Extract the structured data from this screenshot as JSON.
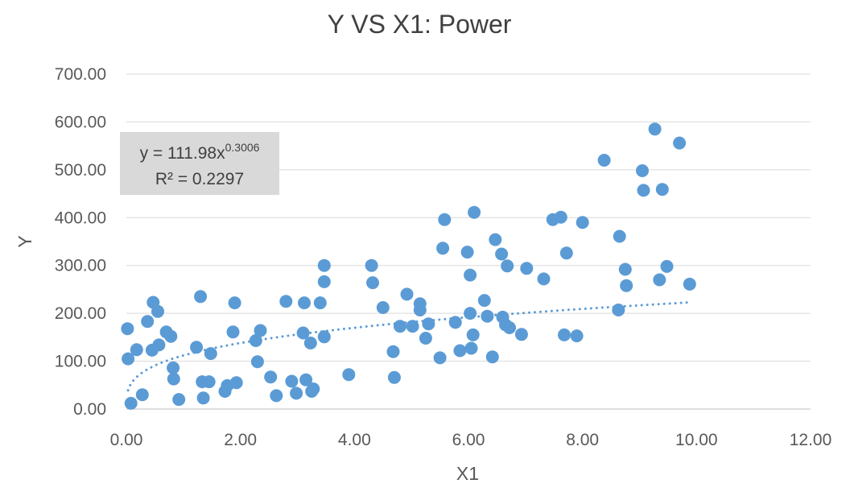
{
  "chart_data": {
    "type": "scatter",
    "title": "Y VS X1: Power",
    "xlabel": "X1",
    "ylabel": "Y",
    "xlim": [
      0,
      12
    ],
    "ylim": [
      0,
      700
    ],
    "xticks": [
      "0.00",
      "2.00",
      "4.00",
      "6.00",
      "8.00",
      "10.00",
      "12.00"
    ],
    "yticks": [
      "0.00",
      "100.00",
      "200.00",
      "300.00",
      "400.00",
      "500.00",
      "600.00",
      "700.00"
    ],
    "grid": "horizontal",
    "marker_color": "#5B9BD5",
    "trendline": {
      "type": "power",
      "a": 111.98,
      "b": 0.3006,
      "equation_prefix": "y = 111.98x",
      "equation_exponent": "0.3006",
      "r2_text": "R² = 0.2297"
    },
    "points": [
      [
        0.02,
        168
      ],
      [
        0.03,
        105
      ],
      [
        0.08,
        12
      ],
      [
        0.18,
        124
      ],
      [
        0.28,
        30
      ],
      [
        0.37,
        183
      ],
      [
        0.45,
        123
      ],
      [
        0.47,
        223
      ],
      [
        0.55,
        204
      ],
      [
        0.57,
        134
      ],
      [
        0.7,
        161
      ],
      [
        0.78,
        152
      ],
      [
        0.82,
        86
      ],
      [
        0.83,
        63
      ],
      [
        0.92,
        20
      ],
      [
        1.23,
        129
      ],
      [
        1.3,
        235
      ],
      [
        1.33,
        57
      ],
      [
        1.35,
        23
      ],
      [
        1.45,
        57
      ],
      [
        1.48,
        116
      ],
      [
        1.73,
        37
      ],
      [
        1.77,
        49
      ],
      [
        1.87,
        161
      ],
      [
        1.9,
        222
      ],
      [
        1.93,
        55
      ],
      [
        2.27,
        143
      ],
      [
        2.3,
        99
      ],
      [
        2.35,
        164
      ],
      [
        2.53,
        67
      ],
      [
        2.63,
        28
      ],
      [
        2.8,
        225
      ],
      [
        2.9,
        58
      ],
      [
        2.98,
        33
      ],
      [
        3.1,
        159
      ],
      [
        3.12,
        222
      ],
      [
        3.15,
        61
      ],
      [
        3.23,
        138
      ],
      [
        3.25,
        37
      ],
      [
        3.28,
        42
      ],
      [
        3.4,
        222
      ],
      [
        3.47,
        151
      ],
      [
        3.47,
        300
      ],
      [
        3.47,
        266
      ],
      [
        3.9,
        72
      ],
      [
        4.3,
        300
      ],
      [
        4.32,
        264
      ],
      [
        4.5,
        212
      ],
      [
        4.68,
        120
      ],
      [
        4.7,
        66
      ],
      [
        4.8,
        173
      ],
      [
        4.92,
        240
      ],
      [
        5.02,
        173
      ],
      [
        5.15,
        207
      ],
      [
        5.15,
        220
      ],
      [
        5.25,
        148
      ],
      [
        5.3,
        178
      ],
      [
        5.5,
        107
      ],
      [
        5.55,
        336
      ],
      [
        5.58,
        396
      ],
      [
        5.77,
        181
      ],
      [
        5.85,
        122
      ],
      [
        5.98,
        328
      ],
      [
        6.03,
        200
      ],
      [
        6.03,
        280
      ],
      [
        6.05,
        127
      ],
      [
        6.08,
        155
      ],
      [
        6.1,
        411
      ],
      [
        6.28,
        227
      ],
      [
        6.33,
        194
      ],
      [
        6.42,
        109
      ],
      [
        6.47,
        354
      ],
      [
        6.58,
        324
      ],
      [
        6.6,
        192
      ],
      [
        6.65,
        176
      ],
      [
        6.68,
        299
      ],
      [
        6.72,
        170
      ],
      [
        6.93,
        156
      ],
      [
        7.02,
        294
      ],
      [
        7.32,
        272
      ],
      [
        7.48,
        396
      ],
      [
        7.62,
        401
      ],
      [
        7.68,
        155
      ],
      [
        7.72,
        326
      ],
      [
        7.9,
        153
      ],
      [
        8.0,
        390
      ],
      [
        8.38,
        520
      ],
      [
        8.63,
        207
      ],
      [
        8.65,
        361
      ],
      [
        8.75,
        292
      ],
      [
        8.77,
        258
      ],
      [
        9.05,
        498
      ],
      [
        9.07,
        457
      ],
      [
        9.27,
        585
      ],
      [
        9.35,
        270
      ],
      [
        9.4,
        459
      ],
      [
        9.48,
        298
      ],
      [
        9.7,
        556
      ],
      [
        9.88,
        261
      ]
    ]
  }
}
